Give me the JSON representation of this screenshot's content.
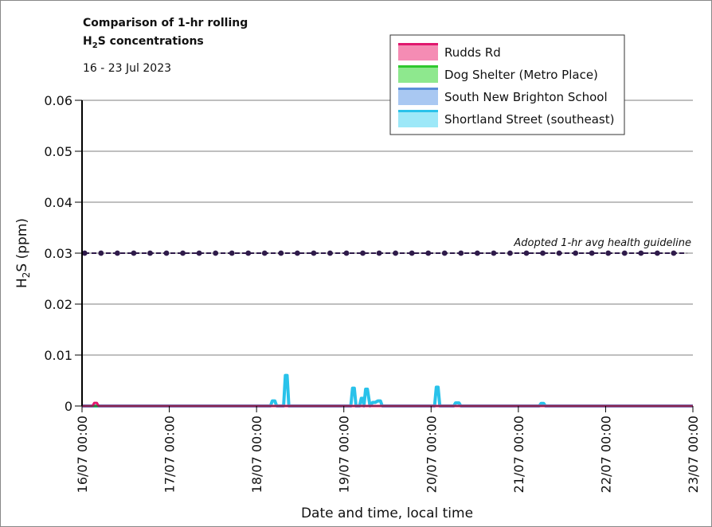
{
  "chart_data": {
    "type": "line",
    "title_line1": "Comparison of 1-hr rolling",
    "title_line2_main": "H",
    "title_line2_sub": "2",
    "title_line2_rest": "S concentrations",
    "subtitle": "16 - 23 Jul 2023",
    "ylabel_main": "H",
    "ylabel_sub": "2",
    "ylabel_rest": "S (ppm)",
    "xlabel": "Date and time, local time",
    "ylim": [
      0,
      0.06
    ],
    "yticks": [
      "0",
      "0.01",
      "0.02",
      "0.03",
      "0.04",
      "0.05",
      "0.06"
    ],
    "xlim": [
      0,
      7
    ],
    "xticks": [
      "16/07 00:00",
      "17/07 00:00",
      "18/07 00:00",
      "19/07 00:00",
      "20/07 00:00",
      "21/07 00:00",
      "22/07 00:00",
      "23/07 00:00"
    ],
    "grid": true,
    "legend_position": "top-right",
    "guideline": {
      "label": "Adopted 1-hr avg health guideline",
      "value": 0.03,
      "color": "#2f1b4a"
    },
    "series": [
      {
        "name": "Rudds Rd",
        "color": "#e0186e",
        "fill": "#f58cb4",
        "x": [
          0,
          0.12,
          0.14,
          0.17,
          0.19,
          7.0
        ],
        "y": [
          0,
          0,
          0.0006,
          0.0006,
          0,
          0
        ]
      },
      {
        "name": "Dog Shelter (Metro Place)",
        "color": "#2fc82f",
        "fill": "#8ee88e",
        "x": [
          0,
          7.0
        ],
        "y": [
          0,
          0
        ]
      },
      {
        "name": "South New Brighton School",
        "color": "#5b8fd9",
        "fill": "#a9c8f2",
        "x": [
          0,
          7.0
        ],
        "y": [
          0,
          0
        ]
      },
      {
        "name": "Shortland Street (southeast)",
        "color": "#29c2ea",
        "fill": "#9de8f8",
        "x": [
          0,
          2.16,
          2.18,
          2.21,
          2.23,
          2.31,
          2.33,
          2.35,
          2.37,
          3.08,
          3.1,
          3.12,
          3.14,
          3.18,
          3.2,
          3.22,
          3.23,
          3.25,
          3.27,
          3.3,
          3.33,
          3.36,
          3.39,
          3.42,
          3.44,
          4.04,
          4.06,
          4.08,
          4.1,
          4.26,
          4.28,
          4.32,
          4.34,
          5.24,
          5.26,
          5.29,
          5.31,
          7.0
        ],
        "y": [
          0,
          0,
          0.001,
          0.001,
          0,
          0,
          0.006,
          0.006,
          0,
          0,
          0.0035,
          0.0035,
          0,
          0,
          0.0015,
          0.0015,
          0,
          0.0033,
          0.0033,
          0,
          0.0007,
          0.0007,
          0.001,
          0.001,
          0,
          0,
          0.0037,
          0.0037,
          0,
          0,
          0.0006,
          0.0006,
          0,
          0,
          0.0005,
          0.0005,
          0,
          0
        ]
      }
    ]
  }
}
